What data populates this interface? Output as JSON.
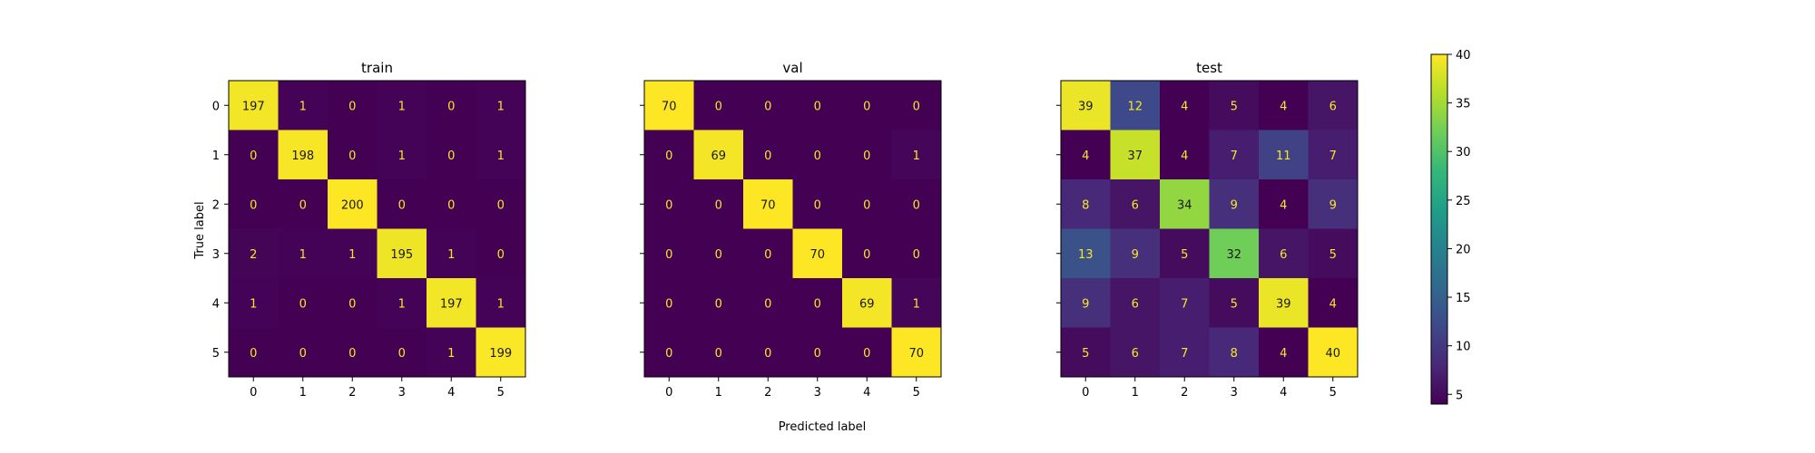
{
  "figure": {
    "xlabel": "Predicted label",
    "ylabel": "True label"
  },
  "chart_data": [
    {
      "type": "heatmap",
      "title": "train",
      "x_ticks": [
        "0",
        "1",
        "2",
        "3",
        "4",
        "5"
      ],
      "y_ticks": [
        "0",
        "1",
        "2",
        "3",
        "4",
        "5"
      ],
      "values": [
        [
          197,
          1,
          0,
          1,
          0,
          1
        ],
        [
          0,
          198,
          0,
          1,
          0,
          1
        ],
        [
          0,
          0,
          200,
          0,
          0,
          0
        ],
        [
          2,
          1,
          1,
          195,
          1,
          0
        ],
        [
          1,
          0,
          0,
          1,
          197,
          1
        ],
        [
          0,
          0,
          0,
          0,
          1,
          199
        ]
      ],
      "colormap": "viridis",
      "vmin": 0,
      "vmax": 200
    },
    {
      "type": "heatmap",
      "title": "val",
      "x_ticks": [
        "0",
        "1",
        "2",
        "3",
        "4",
        "5"
      ],
      "y_ticks": [
        "",
        "",
        "",
        "",
        "",
        ""
      ],
      "values": [
        [
          70,
          0,
          0,
          0,
          0,
          0
        ],
        [
          0,
          69,
          0,
          0,
          0,
          1
        ],
        [
          0,
          0,
          70,
          0,
          0,
          0
        ],
        [
          0,
          0,
          0,
          70,
          0,
          0
        ],
        [
          0,
          0,
          0,
          0,
          69,
          1
        ],
        [
          0,
          0,
          0,
          0,
          0,
          70
        ]
      ],
      "colormap": "viridis",
      "vmin": 0,
      "vmax": 70
    },
    {
      "type": "heatmap",
      "title": "test",
      "x_ticks": [
        "0",
        "1",
        "2",
        "3",
        "4",
        "5"
      ],
      "y_ticks": [
        "",
        "",
        "",
        "",
        "",
        ""
      ],
      "values": [
        [
          39,
          12,
          4,
          5,
          4,
          6
        ],
        [
          4,
          37,
          4,
          7,
          11,
          7
        ],
        [
          8,
          6,
          34,
          9,
          4,
          9
        ],
        [
          13,
          9,
          5,
          32,
          6,
          5
        ],
        [
          9,
          6,
          7,
          5,
          39,
          4
        ],
        [
          5,
          6,
          7,
          8,
          4,
          40
        ]
      ],
      "colormap": "viridis",
      "vmin": 4,
      "vmax": 40,
      "colorbar": {
        "ticks": [
          5,
          10,
          15,
          20,
          25,
          30,
          35,
          40
        ],
        "range": [
          4,
          40
        ]
      }
    }
  ]
}
